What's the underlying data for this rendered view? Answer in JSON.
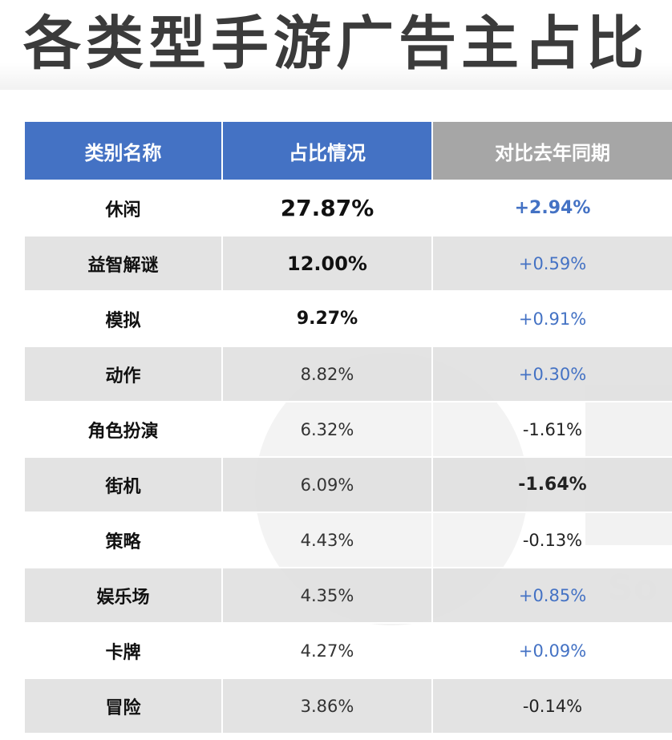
{
  "title": "各类型手游广告主占比",
  "watermark_text": "So",
  "colors": {
    "header_blue": "#4472c4",
    "header_gray": "#a6a6a6",
    "positive": "#4472c4",
    "negative": "#222222"
  },
  "table": {
    "headers": [
      "类别名称",
      "占比情况",
      "对比去年同期"
    ],
    "rows": [
      {
        "category": "休闲",
        "share": "27.87%",
        "change": "+2.94%"
      },
      {
        "category": "益智解谜",
        "share": "12.00%",
        "change": "+0.59%"
      },
      {
        "category": "模拟",
        "share": "9.27%",
        "change": "+0.91%"
      },
      {
        "category": "动作",
        "share": "8.82%",
        "change": "+0.30%"
      },
      {
        "category": "角色扮演",
        "share": "6.32%",
        "change": "-1.61%"
      },
      {
        "category": "街机",
        "share": "6.09%",
        "change": "-1.64%"
      },
      {
        "category": "策略",
        "share": "4.43%",
        "change": "-0.13%"
      },
      {
        "category": "娱乐场",
        "share": "4.35%",
        "change": "+0.85%"
      },
      {
        "category": "卡牌",
        "share": "4.27%",
        "change": "+0.09%"
      },
      {
        "category": "冒险",
        "share": "3.86%",
        "change": "-0.14%"
      }
    ]
  }
}
